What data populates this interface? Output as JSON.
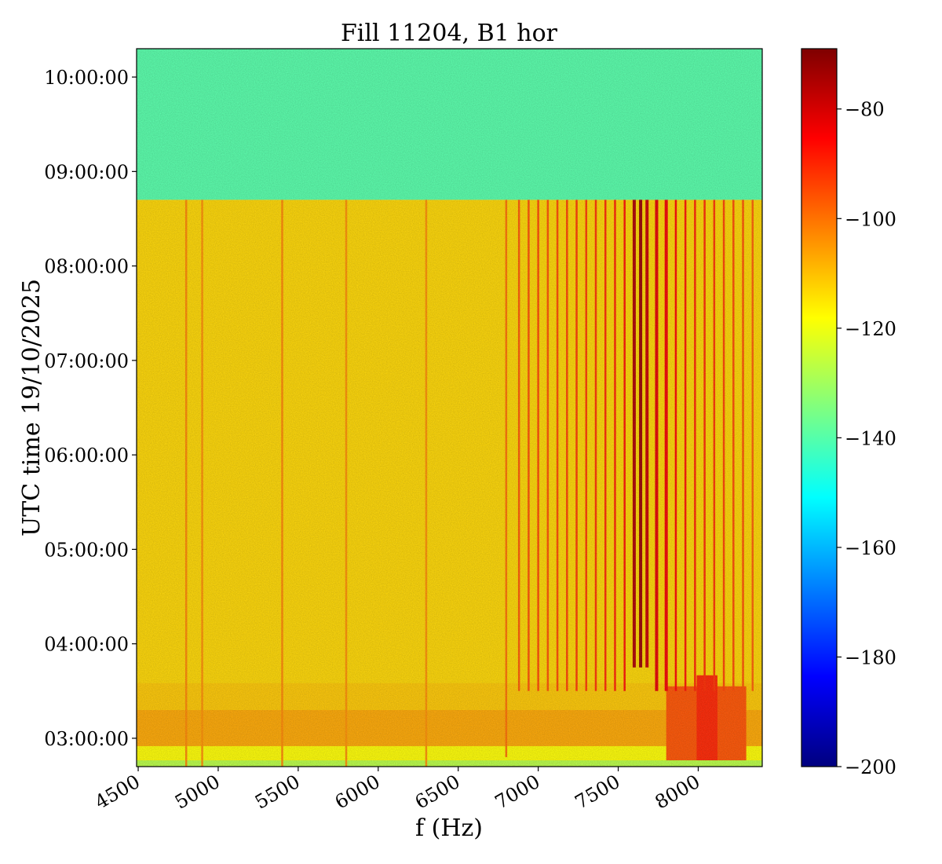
{
  "chart_data": {
    "type": "heatmap",
    "title": "Fill 11204, B1 hor",
    "xlabel": "f (Hz)",
    "ylabel": "UTC time 19/10/2025",
    "xlim": [
      4490,
      8400
    ],
    "x_ticks": [
      4500,
      5000,
      5500,
      6000,
      6500,
      7000,
      7500,
      8000
    ],
    "x_tick_labels": [
      "4500",
      "5000",
      "5500",
      "6000",
      "6500",
      "7000",
      "7500",
      "8000"
    ],
    "y_range": [
      "02:42:00",
      "10:18:00"
    ],
    "y_ticks": [
      "03:00:00",
      "04:00:00",
      "05:00:00",
      "06:00:00",
      "07:00:00",
      "08:00:00",
      "09:00:00",
      "10:00:00"
    ],
    "colorbar": {
      "colormap": "jet",
      "vmin": -200,
      "vmax": -69,
      "ticks": [
        -80,
        -100,
        -120,
        -140,
        -160,
        -180,
        -200
      ],
      "tick_labels": [
        "−80",
        "−100",
        "−120",
        "−140",
        "−160",
        "−180",
        "−200"
      ]
    },
    "regions": [
      {
        "time_range": [
          "08:42:00",
          "10:18:00"
        ],
        "f_range": [
          4490,
          8400
        ],
        "level_db": -140
      },
      {
        "time_range": [
          "02:42:00",
          "08:42:00"
        ],
        "f_range": [
          4490,
          8400
        ],
        "level_db": -113
      },
      {
        "time_range": [
          "02:42:00",
          "02:46:00"
        ],
        "f_range": [
          4490,
          8400
        ],
        "level_db": -127
      },
      {
        "time_range": [
          "02:46:00",
          "03:00:00"
        ],
        "f_range": [
          4490,
          8400
        ],
        "level_db": -118
      },
      {
        "time_range": [
          "02:55:00",
          "03:18:00"
        ],
        "f_range": [
          4490,
          8400
        ],
        "level_db": -107
      },
      {
        "time_range": [
          "03:18:00",
          "03:35:00"
        ],
        "f_range": [
          4490,
          8400
        ],
        "level_db": -111
      },
      {
        "time_range": [
          "02:46:00",
          "03:33:00"
        ],
        "f_range": [
          7800,
          8300
        ],
        "level_db": -96
      },
      {
        "time_range": [
          "02:46:00",
          "03:40:00"
        ],
        "f_range": [
          7990,
          8120
        ],
        "level_db": -90
      }
    ],
    "lines": [
      {
        "f": 4800,
        "t_start": "02:42:00",
        "t_end": "08:42:00",
        "level_db": -103
      },
      {
        "f": 4900,
        "t_start": "02:42:00",
        "t_end": "08:42:00",
        "level_db": -104
      },
      {
        "f": 5400,
        "t_start": "02:42:00",
        "t_end": "08:42:00",
        "level_db": -103
      },
      {
        "f": 5800,
        "t_start": "02:42:00",
        "t_end": "08:42:00",
        "level_db": -104
      },
      {
        "f": 6300,
        "t_start": "02:42:00",
        "t_end": "08:42:00",
        "level_db": -104
      },
      {
        "f": 6800,
        "t_start": "02:48:00",
        "t_end": "08:42:00",
        "level_db": -100
      },
      {
        "f": 6880,
        "t_start": "03:30:00",
        "t_end": "08:42:00",
        "level_db": -97
      },
      {
        "f": 6940,
        "t_start": "03:30:00",
        "t_end": "08:42:00",
        "level_db": -96
      },
      {
        "f": 7000,
        "t_start": "03:30:00",
        "t_end": "08:42:00",
        "level_db": -95
      },
      {
        "f": 7060,
        "t_start": "03:30:00",
        "t_end": "08:42:00",
        "level_db": -96
      },
      {
        "f": 7120,
        "t_start": "03:30:00",
        "t_end": "08:42:00",
        "level_db": -95
      },
      {
        "f": 7180,
        "t_start": "03:30:00",
        "t_end": "08:42:00",
        "level_db": -94
      },
      {
        "f": 7240,
        "t_start": "03:30:00",
        "t_end": "08:42:00",
        "level_db": -93
      },
      {
        "f": 7300,
        "t_start": "03:30:00",
        "t_end": "08:42:00",
        "level_db": -93
      },
      {
        "f": 7360,
        "t_start": "03:30:00",
        "t_end": "08:42:00",
        "level_db": -92
      },
      {
        "f": 7420,
        "t_start": "03:30:00",
        "t_end": "08:42:00",
        "level_db": -91
      },
      {
        "f": 7480,
        "t_start": "03:30:00",
        "t_end": "08:42:00",
        "level_db": -90
      },
      {
        "f": 7540,
        "t_start": "03:30:00",
        "t_end": "08:42:00",
        "level_db": -88
      },
      {
        "f": 7600,
        "t_start": "03:45:00",
        "t_end": "08:42:00",
        "level_db": -75
      },
      {
        "f": 7640,
        "t_start": "03:45:00",
        "t_end": "08:42:00",
        "level_db": -72
      },
      {
        "f": 7680,
        "t_start": "03:45:00",
        "t_end": "08:42:00",
        "level_db": -78
      },
      {
        "f": 7740,
        "t_start": "03:30:00",
        "t_end": "08:42:00",
        "level_db": -82
      },
      {
        "f": 7800,
        "t_start": "03:30:00",
        "t_end": "08:42:00",
        "level_db": -84
      },
      {
        "f": 7860,
        "t_start": "03:30:00",
        "t_end": "08:42:00",
        "level_db": -86
      },
      {
        "f": 7920,
        "t_start": "03:30:00",
        "t_end": "08:42:00",
        "level_db": -88
      },
      {
        "f": 7980,
        "t_start": "03:30:00",
        "t_end": "08:42:00",
        "level_db": -90
      },
      {
        "f": 8040,
        "t_start": "03:30:00",
        "t_end": "08:42:00",
        "level_db": -91
      },
      {
        "f": 8100,
        "t_start": "03:30:00",
        "t_end": "08:42:00",
        "level_db": -92
      },
      {
        "f": 8160,
        "t_start": "03:30:00",
        "t_end": "08:42:00",
        "level_db": -94
      },
      {
        "f": 8220,
        "t_start": "03:30:00",
        "t_end": "08:42:00",
        "level_db": -95
      },
      {
        "f": 8280,
        "t_start": "03:30:00",
        "t_end": "08:42:00",
        "level_db": -96
      },
      {
        "f": 8340,
        "t_start": "03:30:00",
        "t_end": "08:42:00",
        "level_db": -98
      }
    ]
  }
}
